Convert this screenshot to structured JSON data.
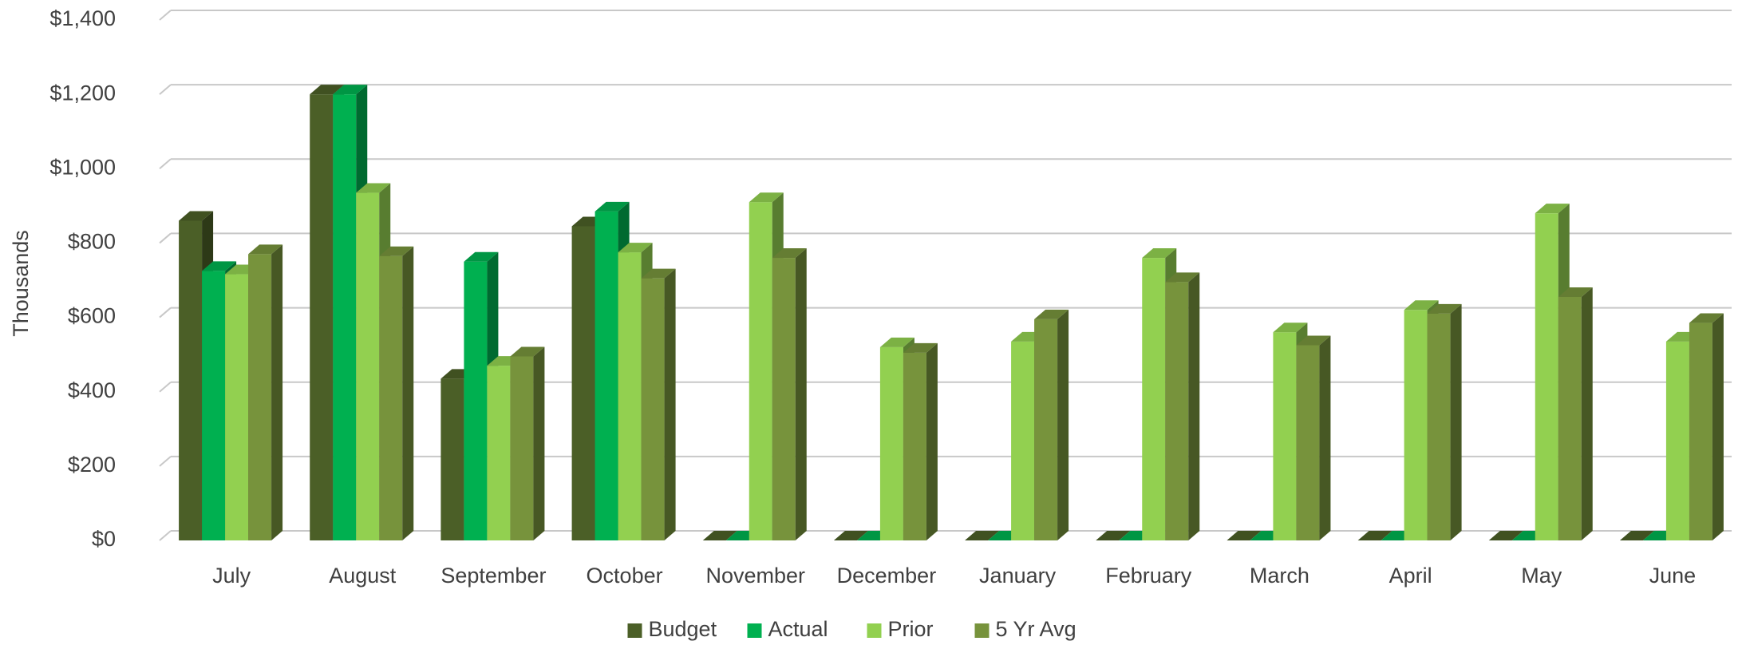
{
  "chart_data": {
    "type": "bar3d",
    "y_axis_label": "Thousands",
    "categories": [
      "July",
      "August",
      "September",
      "October",
      "November",
      "December",
      "January",
      "February",
      "March",
      "April",
      "May",
      "June"
    ],
    "series": [
      {
        "name": "Budget",
        "color": "#4b5f27",
        "values": [
          860,
          1200,
          435,
          845,
          0,
          0,
          0,
          0,
          0,
          0,
          0,
          0
        ]
      },
      {
        "name": "Actual",
        "color": "#00b050",
        "values": [
          725,
          1200,
          750,
          885,
          0,
          0,
          0,
          0,
          0,
          0,
          0,
          0
        ]
      },
      {
        "name": "Prior",
        "color": "#92d050",
        "values": [
          716,
          935,
          470,
          775,
          910,
          520,
          535,
          760,
          560,
          620,
          880,
          535
        ]
      },
      {
        "name": "5 Yr Avg",
        "color": "#77933c",
        "values": [
          770,
          765,
          495,
          705,
          760,
          505,
          595,
          695,
          525,
          610,
          655,
          585
        ]
      }
    ],
    "ylim": [
      0,
      1400
    ],
    "yticks": [
      {
        "value": 0,
        "label": "$0"
      },
      {
        "value": 200,
        "label": "$200"
      },
      {
        "value": 400,
        "label": "$400"
      },
      {
        "value": 600,
        "label": "$600"
      },
      {
        "value": 800,
        "label": "$800"
      },
      {
        "value": 1000,
        "label": "$1,000"
      },
      {
        "value": 1200,
        "label": "$1,200"
      },
      {
        "value": 1400,
        "label": "$1,400"
      }
    ],
    "grid": true,
    "legend": "bottom"
  }
}
